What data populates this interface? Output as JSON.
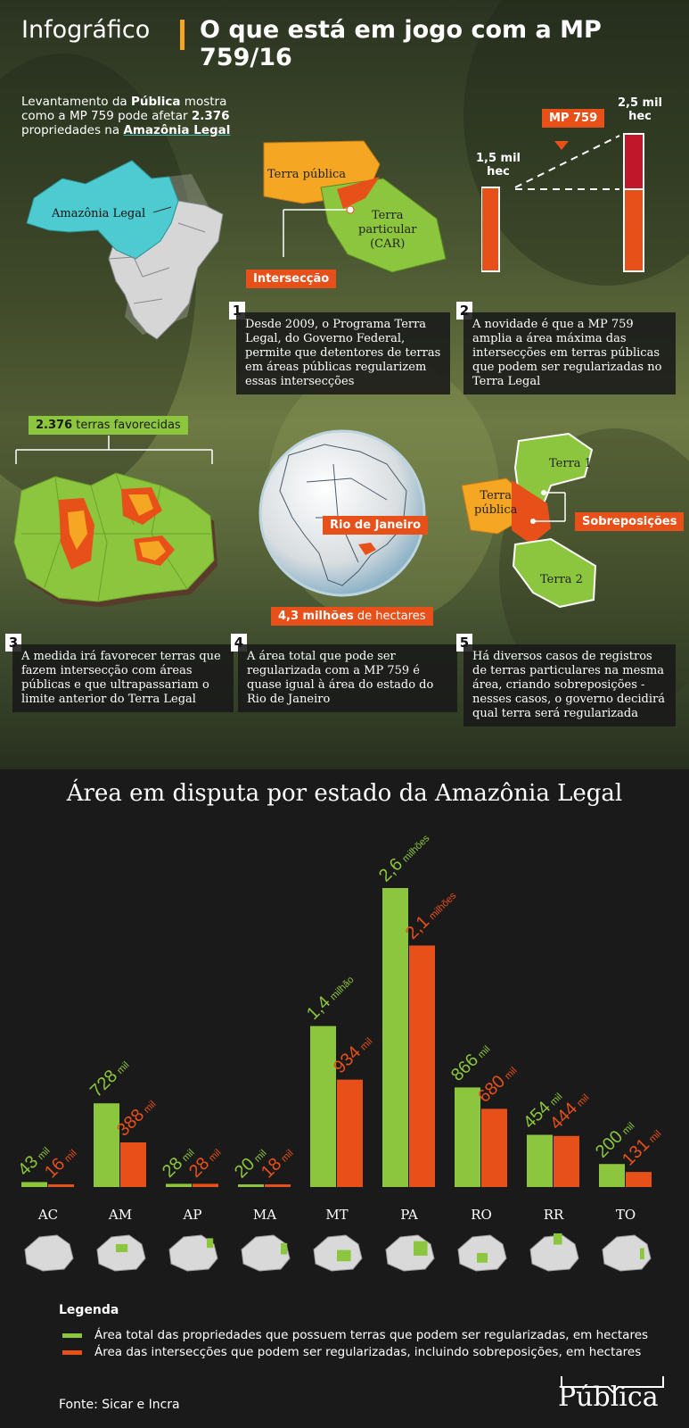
{
  "header": {
    "left": "Infográfico",
    "right": "O que está em jogo com a MP 759/16"
  },
  "intro": {
    "line1a": "Levantamento da ",
    "line1b": "Pública",
    "line1c": " mostra",
    "line2a": "como a MP 759 pode afetar ",
    "line2b": "2.376",
    "line3a": "propriedades na ",
    "line3b": "Amazônia Legal"
  },
  "map_labels": {
    "amazonia": "Amazônia Legal",
    "terra_publica": "Terra pública",
    "terra_particular": [
      "Terra",
      "particular",
      "(CAR)"
    ],
    "interseccao": "Intersecção"
  },
  "mp_graphic": {
    "left_label": [
      "1,5 mil",
      "hec"
    ],
    "right_label": [
      "2,5 mil",
      "hec"
    ],
    "mp_tag": "MP 759"
  },
  "steps": [
    {
      "num": "1",
      "text": "Desde 2009, o Programa Terra Legal, do Governo Federal, permite que detentores de terras em áreas públicas regularizem essas intersecções"
    },
    {
      "num": "2",
      "text": "A novidade é que a MP 759 amplia a área máxima das intersecções em terras públicas que podem ser regularizadas no Terra Legal"
    },
    {
      "num": "3",
      "text": "A medida irá favorecer terras que fazem intersecção com áreas públicas e que ultrapassariam o limite anterior do Terra Legal"
    },
    {
      "num": "4",
      "text": "A área total que pode ser regularizada com a MP 759 é quase igual à área do estado do Rio de Janeiro"
    },
    {
      "num": "5",
      "text": "Há diversos casos de registros de terras particulares na mesma área, criando sobreposições - nesses casos, o governo decidirá qual terra será regularizada"
    }
  ],
  "favored": {
    "count": "2.376",
    "rest": " terras favorecidas"
  },
  "globe": {
    "rj": "Rio de Janeiro",
    "area_bold": "4,3 milhões",
    "area_rest": " de hectares"
  },
  "overlap": {
    "terra1": "Terra 1",
    "terra2": "Terra 2",
    "terra_publica": [
      "Terra",
      "pública"
    ],
    "sobreposicoes": "Sobreposições"
  },
  "chart_data": {
    "type": "bar",
    "title": "Área em disputa por estado da Amazônia Legal",
    "categories": [
      "AC",
      "AM",
      "AP",
      "MA",
      "MT",
      "PA",
      "RO",
      "RR",
      "TO"
    ],
    "series": [
      {
        "name": "Área total das propriedades que possuem terras que podem ser regularizadas, em hectares",
        "color": "#8cc63e",
        "values": [
          43000,
          728000,
          28000,
          20000,
          1400000,
          2600000,
          866000,
          454000,
          200000
        ],
        "labels": [
          [
            "43",
            "mil"
          ],
          [
            "728",
            "mil"
          ],
          [
            "28",
            "mil"
          ],
          [
            "20",
            "mil"
          ],
          [
            "1,4",
            "milhão"
          ],
          [
            "2,6",
            "milhões"
          ],
          [
            "866",
            "mil"
          ],
          [
            "454",
            "mil"
          ],
          [
            "200",
            "mil"
          ]
        ]
      },
      {
        "name": "Área das intersecções que podem ser regularizadas, incluindo sobreposições, em hectares",
        "color": "#e8501a",
        "values": [
          16000,
          388000,
          28000,
          18000,
          934000,
          2100000,
          680000,
          444000,
          131000
        ],
        "labels": [
          [
            "16",
            "mil"
          ],
          [
            "388",
            "mil"
          ],
          [
            "28",
            "mil"
          ],
          [
            "18",
            "mil"
          ],
          [
            "934",
            "mil"
          ],
          [
            "2,1",
            "milhões"
          ],
          [
            "680",
            "mil"
          ],
          [
            "444",
            "mil"
          ],
          [
            "131",
            "mil"
          ]
        ]
      }
    ],
    "ylim": [
      0,
      2600000
    ]
  },
  "legend": {
    "title": "Legenda"
  },
  "source": "Fonte: Sicar e Incra",
  "logo": "Pública"
}
